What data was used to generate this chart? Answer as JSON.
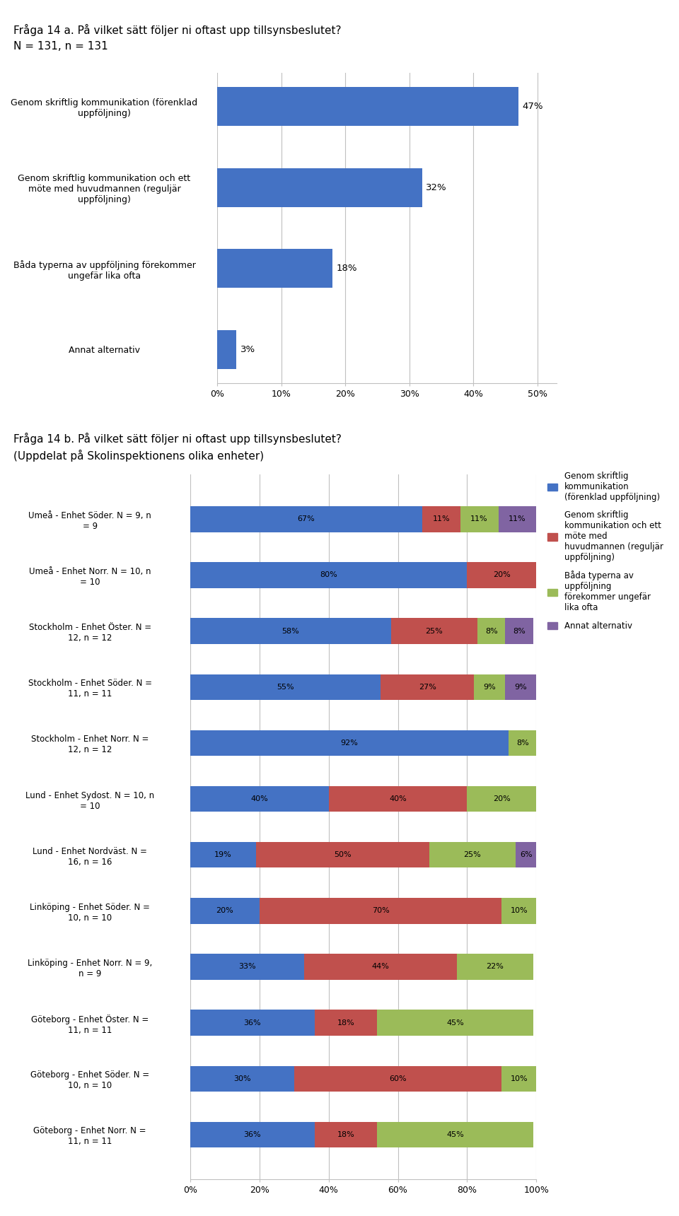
{
  "title_a": "Fråga 14 a. På vilket sätt följer ni oftast upp tillsynsbeslutet?",
  "subtitle_a": "N = 131, n = 131",
  "title_b": "Fråga 14 b. På vilket sätt följer ni oftast upp tillsynsbeslutet?",
  "subtitle_b": "(Uppdelat på Skolinspektionens olika enheter)",
  "chart_a": {
    "categories": [
      "Genom skriftlig kommunikation (förenklad\nuppföljning)",
      "Genom skriftlig kommunikation och ett\nmöte med huvudmannen (reguljär\nuppföljning)",
      "Båda typerna av uppföljning förekommer\nungefär lika ofta",
      "Annat alternativ"
    ],
    "values": [
      47,
      32,
      18,
      3
    ],
    "bar_color": "#4472C4",
    "xticks": [
      0,
      10,
      20,
      30,
      40,
      50
    ],
    "xticklabels": [
      "0%",
      "10%",
      "20%",
      "30%",
      "40%",
      "50%"
    ]
  },
  "chart_b": {
    "categories": [
      "Umeå - Enhet Söder. N = 9, n\n= 9",
      "Umeå - Enhet Norr. N = 10, n\n= 10",
      "Stockholm - Enhet Öster. N =\n12, n = 12",
      "Stockholm - Enhet Söder. N =\n11, n = 11",
      "Stockholm - Enhet Norr. N =\n12, n = 12",
      "Lund - Enhet Sydost. N = 10, n\n= 10",
      "Lund - Enhet Nordväst. N =\n16, n = 16",
      "Linköping - Enhet Söder. N =\n10, n = 10",
      "Linköping - Enhet Norr. N = 9,\nn = 9",
      "Göteborg - Enhet Öster. N =\n11, n = 11",
      "Göteborg - Enhet Söder. N =\n10, n = 10",
      "Göteborg - Enhet Norr. N =\n11, n = 11"
    ],
    "data": [
      [
        67,
        11,
        11,
        11
      ],
      [
        80,
        20,
        0,
        0
      ],
      [
        58,
        25,
        8,
        8
      ],
      [
        55,
        27,
        9,
        9
      ],
      [
        92,
        0,
        8,
        0
      ],
      [
        40,
        40,
        20,
        0
      ],
      [
        19,
        50,
        25,
        6
      ],
      [
        20,
        70,
        10,
        0
      ],
      [
        33,
        44,
        22,
        0
      ],
      [
        36,
        18,
        45,
        0
      ],
      [
        30,
        60,
        10,
        0
      ],
      [
        36,
        18,
        45,
        0
      ]
    ],
    "colors": [
      "#4472C4",
      "#C0504D",
      "#9BBB59",
      "#8064A2"
    ],
    "xticks": [
      0,
      20,
      40,
      60,
      80,
      100
    ],
    "xticklabels": [
      "0%",
      "20%",
      "40%",
      "60%",
      "80%",
      "100%"
    ],
    "legend_labels": [
      "Genom skriftlig\nkommunikation\n(förenklad uppföljning)",
      "Genom skriftlig\nkommunikation och ett\nmöte med\nhuvudmannen (reguljär\nuppföljning)",
      "Båda typerna av\nuppföljning\nförekommer ungefär\nlika ofta",
      "Annat alternativ"
    ]
  },
  "background_color": "#FFFFFF",
  "grid_color": "#C0C0C0",
  "text_color": "#000000",
  "fontsize_title": 11,
  "fontsize_labels": 9,
  "fontsize_ticks": 9,
  "fontsize_bar_labels": 8.5
}
